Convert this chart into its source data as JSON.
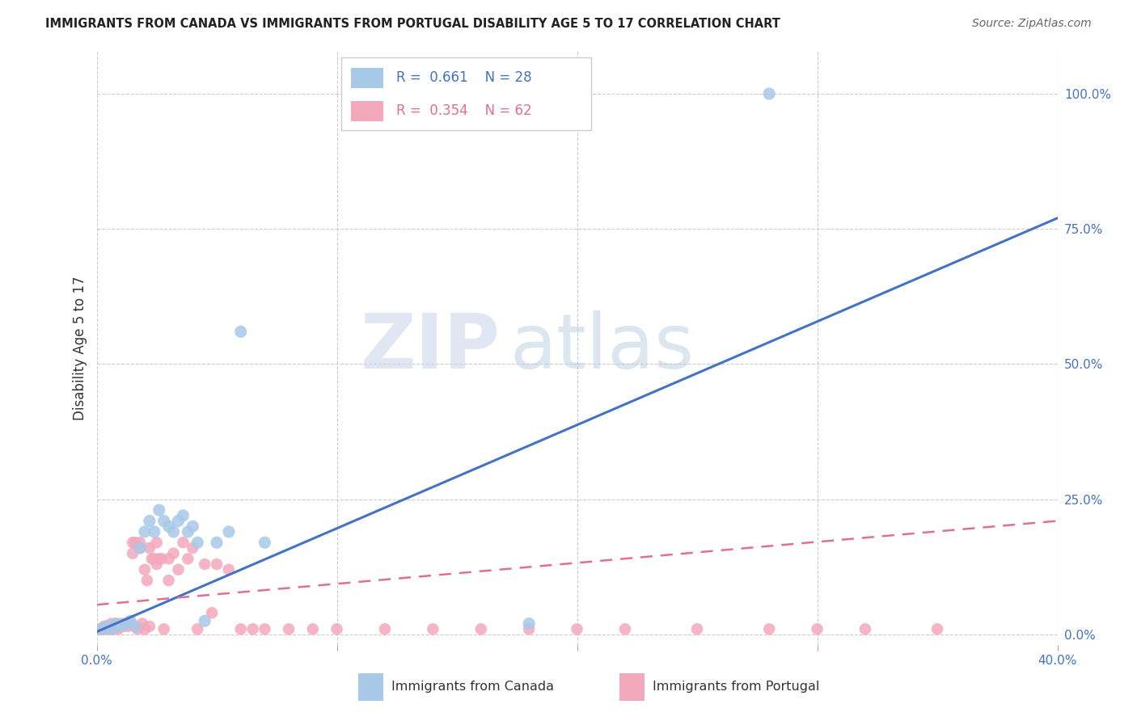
{
  "title": "IMMIGRANTS FROM CANADA VS IMMIGRANTS FROM PORTUGAL DISABILITY AGE 5 TO 17 CORRELATION CHART",
  "source": "Source: ZipAtlas.com",
  "ylabel": "Disability Age 5 to 17",
  "xlim": [
    0.0,
    0.4
  ],
  "ylim": [
    -0.02,
    1.08
  ],
  "x_ticks": [
    0.0,
    0.1,
    0.2,
    0.3,
    0.4
  ],
  "x_tick_labels": [
    "0.0%",
    "",
    "",
    "",
    "40.0%"
  ],
  "y_ticks_right": [
    0.0,
    0.25,
    0.5,
    0.75,
    1.0
  ],
  "y_tick_labels_right": [
    "0.0%",
    "25.0%",
    "50.0%",
    "75.0%",
    "100.0%"
  ],
  "canada_color": "#a8c8e8",
  "portugal_color": "#f4a8bc",
  "canada_line_color": "#4472c4",
  "portugal_line_color": "#e07090",
  "watermark_zip": "ZIP",
  "watermark_atlas": "atlas",
  "canada_R": "0.661",
  "canada_N": "28",
  "portugal_R": "0.354",
  "portugal_N": "62",
  "canada_scatter_x": [
    0.002,
    0.004,
    0.006,
    0.008,
    0.01,
    0.012,
    0.014,
    0.016,
    0.018,
    0.02,
    0.022,
    0.024,
    0.026,
    0.028,
    0.03,
    0.032,
    0.034,
    0.036,
    0.038,
    0.04,
    0.042,
    0.045,
    0.05,
    0.055,
    0.06,
    0.07,
    0.18,
    0.28
  ],
  "canada_scatter_y": [
    0.01,
    0.015,
    0.01,
    0.02,
    0.015,
    0.02,
    0.025,
    0.015,
    0.16,
    0.19,
    0.21,
    0.19,
    0.23,
    0.21,
    0.2,
    0.19,
    0.21,
    0.22,
    0.19,
    0.2,
    0.17,
    0.025,
    0.17,
    0.19,
    0.56,
    0.17,
    0.02,
    1.0
  ],
  "portugal_scatter_x": [
    0.001,
    0.002,
    0.003,
    0.004,
    0.005,
    0.006,
    0.007,
    0.008,
    0.009,
    0.01,
    0.011,
    0.012,
    0.013,
    0.014,
    0.015,
    0.016,
    0.017,
    0.018,
    0.019,
    0.02,
    0.021,
    0.022,
    0.023,
    0.024,
    0.025,
    0.026,
    0.027,
    0.028,
    0.03,
    0.032,
    0.034,
    0.036,
    0.038,
    0.04,
    0.042,
    0.045,
    0.048,
    0.05,
    0.055,
    0.06,
    0.065,
    0.07,
    0.08,
    0.09,
    0.1,
    0.12,
    0.14,
    0.16,
    0.18,
    0.2,
    0.22,
    0.25,
    0.28,
    0.3,
    0.32,
    0.35,
    0.025,
    0.03,
    0.018,
    0.022,
    0.015,
    0.02
  ],
  "portugal_scatter_y": [
    0.01,
    0.01,
    0.015,
    0.01,
    0.01,
    0.02,
    0.01,
    0.02,
    0.01,
    0.02,
    0.015,
    0.02,
    0.015,
    0.02,
    0.17,
    0.17,
    0.01,
    0.17,
    0.02,
    0.12,
    0.1,
    0.16,
    0.14,
    0.14,
    0.13,
    0.14,
    0.14,
    0.01,
    0.14,
    0.15,
    0.12,
    0.17,
    0.14,
    0.16,
    0.01,
    0.13,
    0.04,
    0.13,
    0.12,
    0.01,
    0.01,
    0.01,
    0.01,
    0.01,
    0.01,
    0.01,
    0.01,
    0.01,
    0.01,
    0.01,
    0.01,
    0.01,
    0.01,
    0.01,
    0.01,
    0.01,
    0.17,
    0.1,
    0.16,
    0.015,
    0.15,
    0.01
  ],
  "canada_line_x": [
    0.0,
    0.4
  ],
  "canada_line_y": [
    0.005,
    0.77
  ],
  "portugal_line_x": [
    0.0,
    0.4
  ],
  "portugal_line_y": [
    0.055,
    0.21
  ]
}
